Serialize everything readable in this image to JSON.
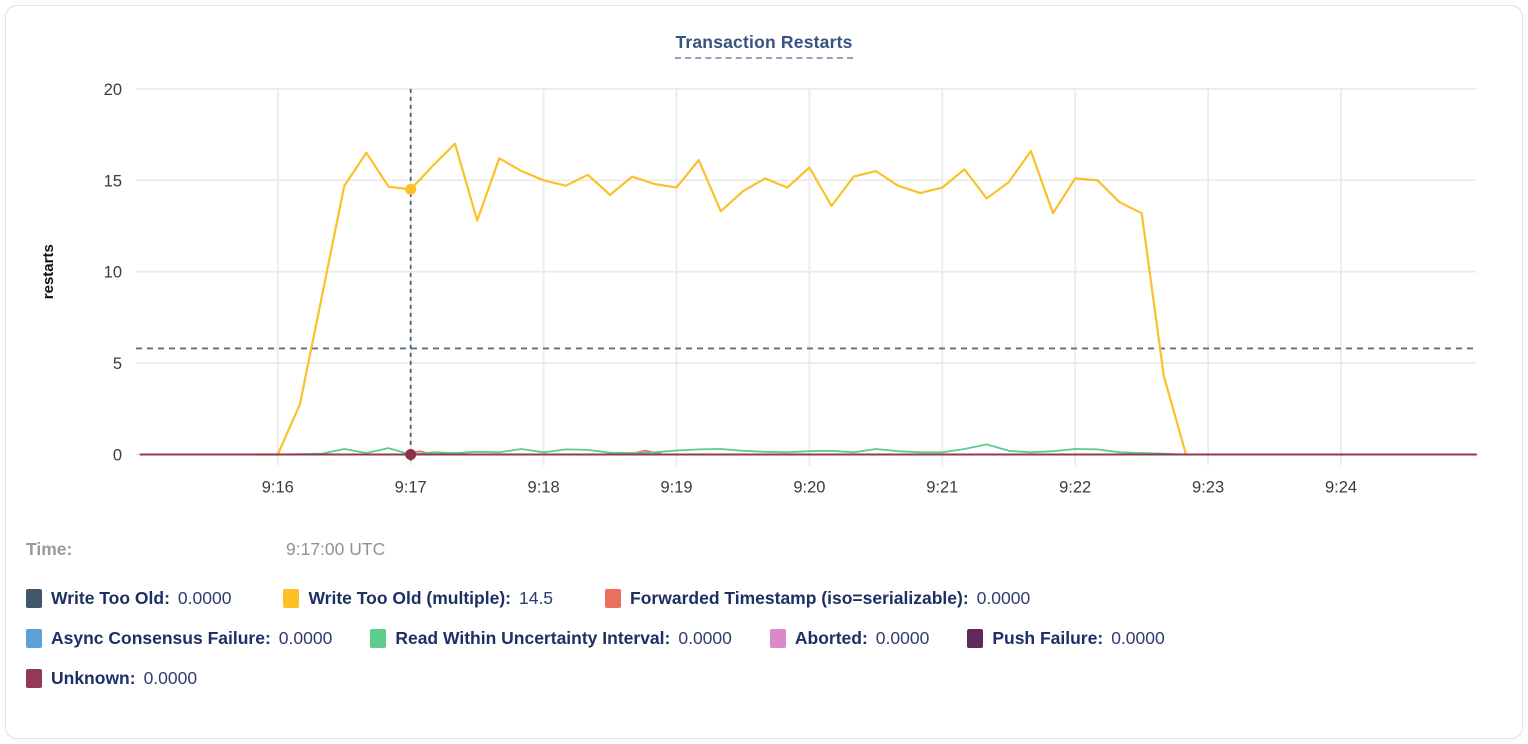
{
  "chart_data": {
    "type": "line",
    "title": "Transaction Restarts",
    "ylabel": "restarts",
    "ylim": [
      0,
      20
    ],
    "y_ticks": [
      0,
      5,
      10,
      15,
      20
    ],
    "x_tick_labels": [
      "9:16",
      "9:17",
      "9:18",
      "9:19",
      "9:20",
      "9:21",
      "9:22",
      "9:23",
      "9:24"
    ],
    "grid": true,
    "crosshair": {
      "time": "9:17:00 UTC",
      "time_seconds": 60,
      "hline_value": 5.8,
      "dots": [
        {
          "value": 14.5,
          "color": "#fcc127"
        },
        {
          "value": 0,
          "color": "#8c2f4a"
        }
      ]
    },
    "series": [
      {
        "name": "Write Too Old",
        "color": "#425569",
        "width": 1.6,
        "points": [
          [
            -62,
            0
          ],
          [
            541,
            0
          ]
        ]
      },
      {
        "name": "Async Consensus Failure",
        "color": "#5ca0d8",
        "width": 1.6,
        "points": [
          [
            -62,
            0
          ],
          [
            541,
            0
          ]
        ]
      },
      {
        "name": "Aborted",
        "color": "#d88aca",
        "width": 1.6,
        "points": [
          [
            -62,
            0
          ],
          [
            541,
            0
          ]
        ]
      },
      {
        "name": "Push Failure",
        "color": "#5f2a59",
        "width": 1.6,
        "points": [
          [
            -62,
            0
          ],
          [
            541,
            0
          ]
        ]
      },
      {
        "name": "Forwarded Timestamp (iso=serializable)",
        "color": "#eb6f60",
        "width": 1.6,
        "points": [
          [
            -62,
            0
          ],
          [
            58,
            0
          ],
          [
            64,
            0.18
          ],
          [
            70,
            0
          ],
          [
            158,
            0
          ],
          [
            166,
            0.22
          ],
          [
            174,
            0
          ],
          [
            541,
            0
          ]
        ]
      },
      {
        "name": "Write Too Old (multiple)",
        "color": "#fcc127",
        "width": 2.2,
        "points": [
          [
            -10,
            0
          ],
          [
            0,
            0
          ],
          [
            10,
            2.75
          ],
          [
            20,
            8.7
          ],
          [
            30,
            14.7
          ],
          [
            40,
            16.5
          ],
          [
            50,
            14.65
          ],
          [
            60,
            14.5
          ],
          [
            70,
            15.8
          ],
          [
            80,
            17.0
          ],
          [
            90,
            12.8
          ],
          [
            100,
            16.2
          ],
          [
            110,
            15.5
          ],
          [
            120,
            15.0
          ],
          [
            130,
            14.7
          ],
          [
            140,
            15.3
          ],
          [
            150,
            14.2
          ],
          [
            160,
            15.2
          ],
          [
            170,
            14.8
          ],
          [
            180,
            14.6
          ],
          [
            190,
            16.1
          ],
          [
            200,
            13.3
          ],
          [
            210,
            14.4
          ],
          [
            220,
            15.1
          ],
          [
            230,
            14.6
          ],
          [
            240,
            15.7
          ],
          [
            250,
            13.6
          ],
          [
            260,
            15.2
          ],
          [
            270,
            15.5
          ],
          [
            280,
            14.7
          ],
          [
            290,
            14.3
          ],
          [
            300,
            14.6
          ],
          [
            310,
            15.6
          ],
          [
            320,
            14.0
          ],
          [
            330,
            14.9
          ],
          [
            340,
            16.6
          ],
          [
            350,
            13.2
          ],
          [
            360,
            15.1
          ],
          [
            370,
            15.0
          ],
          [
            380,
            13.8
          ],
          [
            390,
            13.2
          ],
          [
            400,
            4.3
          ],
          [
            410,
            0
          ]
        ]
      },
      {
        "name": "Read Within Uncertainty Interval",
        "color": "#5dcd8c",
        "width": 1.8,
        "points": [
          [
            0,
            0
          ],
          [
            10,
            0.02
          ],
          [
            20,
            0.05
          ],
          [
            30,
            0.3
          ],
          [
            40,
            0.08
          ],
          [
            50,
            0.35
          ],
          [
            60,
            0.0
          ],
          [
            70,
            0.12
          ],
          [
            80,
            0.08
          ],
          [
            90,
            0.15
          ],
          [
            100,
            0.12
          ],
          [
            110,
            0.3
          ],
          [
            120,
            0.12
          ],
          [
            130,
            0.28
          ],
          [
            140,
            0.25
          ],
          [
            150,
            0.1
          ],
          [
            160,
            0.08
          ],
          [
            170,
            0.12
          ],
          [
            180,
            0.22
          ],
          [
            190,
            0.28
          ],
          [
            200,
            0.3
          ],
          [
            210,
            0.2
          ],
          [
            220,
            0.15
          ],
          [
            230,
            0.12
          ],
          [
            240,
            0.18
          ],
          [
            250,
            0.2
          ],
          [
            260,
            0.12
          ],
          [
            270,
            0.3
          ],
          [
            280,
            0.18
          ],
          [
            290,
            0.12
          ],
          [
            300,
            0.12
          ],
          [
            310,
            0.3
          ],
          [
            320,
            0.55
          ],
          [
            330,
            0.2
          ],
          [
            340,
            0.12
          ],
          [
            350,
            0.18
          ],
          [
            360,
            0.3
          ],
          [
            370,
            0.28
          ],
          [
            380,
            0.12
          ],
          [
            390,
            0.08
          ],
          [
            400,
            0.05
          ],
          [
            410,
            0
          ]
        ]
      },
      {
        "name": "Unknown",
        "color": "#953853",
        "width": 2,
        "points": [
          [
            -62,
            0
          ],
          [
            541,
            0
          ]
        ]
      }
    ]
  },
  "tooltip": {
    "time_label": "Time:",
    "time_value": "9:17:00 UTC"
  },
  "legend": {
    "rows": [
      [
        {
          "label": "Write Too Old:",
          "value": "0.0000",
          "color": "#425569"
        },
        {
          "label": "Write Too Old (multiple):",
          "value": "14.5",
          "color": "#fcc127"
        },
        {
          "label": "Forwarded Timestamp (iso=serializable):",
          "value": "0.0000",
          "color": "#eb6f60"
        }
      ],
      [
        {
          "label": "Async Consensus Failure:",
          "value": "0.0000",
          "color": "#5ca0d8"
        },
        {
          "label": "Read Within Uncertainty Interval:",
          "value": "0.0000",
          "color": "#5dcd8c"
        },
        {
          "label": "Aborted:",
          "value": "0.0000",
          "color": "#d88aca"
        },
        {
          "label": "Push Failure:",
          "value": "0.0000",
          "color": "#5f2a59"
        }
      ],
      [
        {
          "label": "Unknown:",
          "value": "0.0000",
          "color": "#953853"
        }
      ]
    ]
  },
  "colors": {
    "grid": "#e9e9e9",
    "crosshair": "#3d5068",
    "hline": "#5c7187",
    "title": "#37538o"
  }
}
